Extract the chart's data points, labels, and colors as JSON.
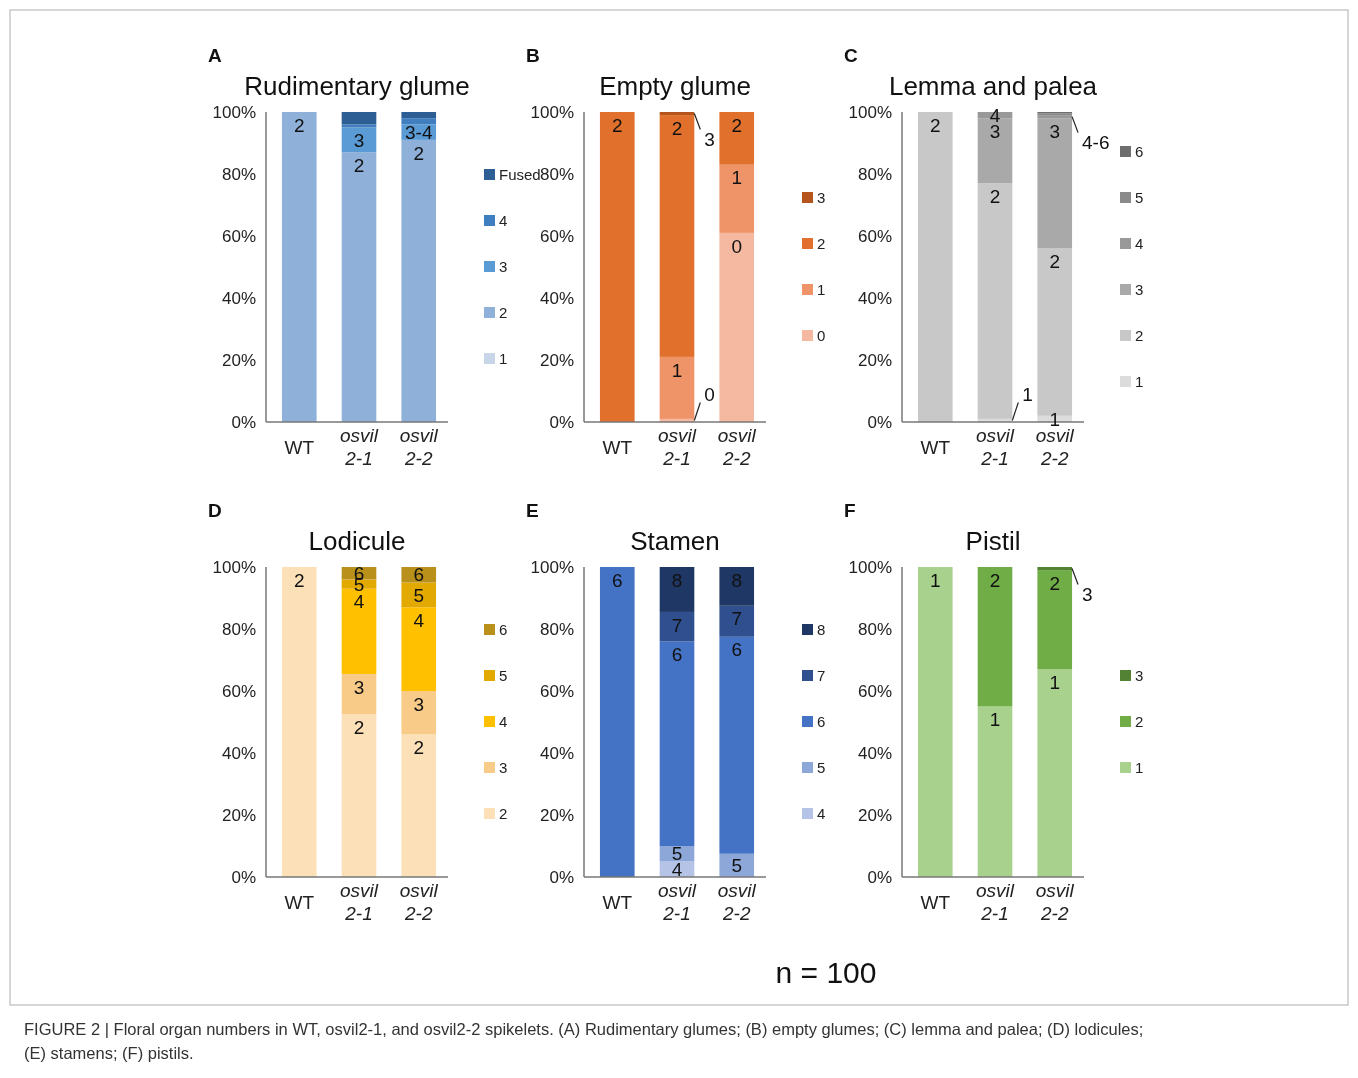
{
  "chart_data": [
    {
      "type": "bar",
      "title": "Rudimentary glume",
      "stacked": true,
      "legend": "right",
      "categories": [
        "WT",
        "osvil 2-1",
        "osvil 2-2"
      ],
      "ylim": [
        0,
        100
      ],
      "yticks": [
        {
          "value": 0,
          "label": "0%"
        },
        {
          "value": 20,
          "label": "20%"
        },
        {
          "value": 40,
          "label": "40%"
        },
        {
          "value": 60,
          "label": "60%"
        },
        {
          "value": 80,
          "label": "80%"
        },
        {
          "value": 100,
          "label": "100%"
        }
      ],
      "series": [
        {
          "name": "1",
          "color": "#c9d6ea",
          "values": [
            0,
            0,
            0
          ]
        },
        {
          "name": "2",
          "color": "#8fb0d9",
          "values": [
            100,
            87,
            91
          ]
        },
        {
          "name": "3",
          "color": "#5b9bd5",
          "values": [
            0,
            8,
            5
          ]
        },
        {
          "name": "4",
          "color": "#3f7fbf",
          "values": [
            0,
            1,
            2
          ]
        },
        {
          "name": "Fused",
          "color": "#2e5f94",
          "values": [
            0,
            4,
            2
          ]
        }
      ],
      "annotations": [
        "A",
        {
          "text": "2",
          "x": "WT",
          "y": 100
        },
        {
          "text": "2",
          "x": "osvil 2-1",
          "y": 87
        },
        {
          "text": "3",
          "x": "osvil 2-1",
          "y": 95
        },
        {
          "text": "2",
          "x": "osvil 2-2",
          "y": 91
        },
        {
          "text": "3-4",
          "x": "osvil 2-2",
          "y": 96
        }
      ]
    },
    {
      "type": "bar",
      "title": "Empty glume",
      "stacked": true,
      "legend": "right",
      "categories": [
        "WT",
        "osvil 2-1",
        "osvil 2-2"
      ],
      "ylim": [
        0,
        100
      ],
      "yticks": [
        {
          "value": 0,
          "label": "0%"
        },
        {
          "value": 20,
          "label": "20%"
        },
        {
          "value": 40,
          "label": "40%"
        },
        {
          "value": 60,
          "label": "60%"
        },
        {
          "value": 80,
          "label": "80%"
        },
        {
          "value": 100,
          "label": "100%"
        }
      ],
      "series": [
        {
          "name": "0",
          "color": "#f4b9a0",
          "values": [
            0,
            1,
            61
          ]
        },
        {
          "name": "1",
          "color": "#ef9468",
          "values": [
            0,
            20,
            22
          ]
        },
        {
          "name": "2",
          "color": "#e0702b",
          "values": [
            100,
            78,
            17
          ]
        },
        {
          "name": "3",
          "color": "#b5541c",
          "values": [
            0,
            1,
            0
          ]
        }
      ],
      "annotations": [
        "B",
        {
          "text": "2",
          "x": "WT",
          "y": 100
        },
        {
          "text": "2",
          "x": "osvil 2-1",
          "y": 99
        },
        {
          "text": "1",
          "x": "osvil 2-1",
          "y": 21
        },
        {
          "text": "0",
          "x": "osvil 2-1",
          "y": 1
        },
        {
          "text": "3",
          "x": "osvil 2-1",
          "y": 100
        },
        {
          "text": "2",
          "x": "osvil 2-2",
          "y": 100
        },
        {
          "text": "1",
          "x": "osvil 2-2",
          "y": 83
        },
        {
          "text": "0",
          "x": "osvil 2-2",
          "y": 61
        }
      ]
    },
    {
      "type": "bar",
      "title": "Lemma and palea",
      "stacked": true,
      "legend": "right",
      "categories": [
        "WT",
        "osvil 2-1",
        "osvil 2-2"
      ],
      "ylim": [
        0,
        100
      ],
      "yticks": [
        {
          "value": 0,
          "label": "0%"
        },
        {
          "value": 20,
          "label": "20%"
        },
        {
          "value": 40,
          "label": "40%"
        },
        {
          "value": 60,
          "label": "60%"
        },
        {
          "value": 80,
          "label": "80%"
        },
        {
          "value": 100,
          "label": "100%"
        }
      ],
      "series": [
        {
          "name": "1",
          "color": "#dcdcdc",
          "values": [
            0,
            1,
            2
          ]
        },
        {
          "name": "2",
          "color": "#c8c8c8",
          "values": [
            100,
            76,
            54
          ]
        },
        {
          "name": "3",
          "color": "#a9a9a9",
          "values": [
            0,
            21,
            42
          ]
        },
        {
          "name": "4",
          "color": "#999999",
          "values": [
            0,
            2,
            1
          ]
        },
        {
          "name": "5",
          "color": "#8a8a8a",
          "values": [
            0,
            0,
            0.5
          ]
        },
        {
          "name": "6",
          "color": "#6e6e6e",
          "values": [
            0,
            0,
            0.5
          ]
        }
      ],
      "annotations": [
        "C",
        {
          "text": "2",
          "x": "WT",
          "y": 100
        },
        {
          "text": "2",
          "x": "osvil 2-1",
          "y": 77
        },
        {
          "text": "3",
          "x": "osvil 2-1",
          "y": 98
        },
        {
          "text": "4",
          "x": "osvil 2-1",
          "y": 100
        },
        {
          "text": "1",
          "x": "osvil 2-1",
          "y": 1
        },
        {
          "text": "2",
          "x": "osvil 2-2",
          "y": 56
        },
        {
          "text": "3",
          "x": "osvil 2-2",
          "y": 98
        },
        {
          "text": "1",
          "x": "osvil 2-2",
          "y": 2
        },
        {
          "text": "4-6",
          "x": "osvil 2-2",
          "y": 99
        }
      ]
    },
    {
      "type": "bar",
      "title": "Lodicule",
      "stacked": true,
      "legend": "right",
      "categories": [
        "WT",
        "osvil 2-1",
        "osvil 2-2"
      ],
      "ylim": [
        0,
        100
      ],
      "yticks": [
        {
          "value": 0,
          "label": "0%"
        },
        {
          "value": 20,
          "label": "20%"
        },
        {
          "value": 40,
          "label": "40%"
        },
        {
          "value": 60,
          "label": "60%"
        },
        {
          "value": 80,
          "label": "80%"
        },
        {
          "value": 100,
          "label": "100%"
        }
      ],
      "series": [
        {
          "name": "2",
          "color": "#fbe0b8",
          "values": [
            100,
            52.5,
            46
          ]
        },
        {
          "name": "3",
          "color": "#f8cc88",
          "values": [
            0,
            13,
            14
          ]
        },
        {
          "name": "4",
          "color": "#ffc000",
          "values": [
            0,
            27.5,
            27
          ]
        },
        {
          "name": "5",
          "color": "#e2a900",
          "values": [
            0,
            3,
            8
          ]
        },
        {
          "name": "6",
          "color": "#b8901a",
          "values": [
            0,
            4,
            5
          ]
        }
      ],
      "annotations": [
        "D",
        {
          "text": "2",
          "x": "WT",
          "y": 100
        },
        {
          "text": "2",
          "x": "osvil 2-1",
          "y": 52.5
        },
        {
          "text": "3",
          "x": "osvil 2-1",
          "y": 65.5
        },
        {
          "text": "4",
          "x": "osvil 2-1",
          "y": 93
        },
        {
          "text": "5",
          "x": "osvil 2-1",
          "y": 96
        },
        {
          "text": "6",
          "x": "osvil 2-1",
          "y": 100
        },
        {
          "text": "2",
          "x": "osvil 2-2",
          "y": 46
        },
        {
          "text": "3",
          "x": "osvil 2-2",
          "y": 60
        },
        {
          "text": "4",
          "x": "osvil 2-2",
          "y": 87
        },
        {
          "text": "5",
          "x": "osvil 2-2",
          "y": 95
        },
        {
          "text": "6",
          "x": "osvil 2-2",
          "y": 100
        }
      ]
    },
    {
      "type": "bar",
      "title": "Stamen",
      "stacked": true,
      "legend": "right",
      "categories": [
        "WT",
        "osvil 2-1",
        "osvil 2-2"
      ],
      "ylim": [
        0,
        100
      ],
      "yticks": [
        {
          "value": 0,
          "label": "0%"
        },
        {
          "value": 20,
          "label": "20%"
        },
        {
          "value": 40,
          "label": "40%"
        },
        {
          "value": 60,
          "label": "60%"
        },
        {
          "value": 80,
          "label": "80%"
        },
        {
          "value": 100,
          "label": "100%"
        }
      ],
      "series": [
        {
          "name": "4",
          "color": "#b4c3e6",
          "values": [
            0,
            5,
            0
          ]
        },
        {
          "name": "5",
          "color": "#8ea7d9",
          "values": [
            0,
            5,
            7.5
          ]
        },
        {
          "name": "6",
          "color": "#4472c4",
          "values": [
            100,
            66,
            70
          ]
        },
        {
          "name": "7",
          "color": "#2f4f8f",
          "values": [
            0,
            9.5,
            10
          ]
        },
        {
          "name": "8",
          "color": "#1f3764",
          "values": [
            0,
            14.5,
            12.5
          ]
        }
      ],
      "annotations": [
        "E",
        {
          "text": "6",
          "x": "WT",
          "y": 100
        },
        {
          "text": "8",
          "x": "osvil 2-1",
          "y": 100
        },
        {
          "text": "7",
          "x": "osvil 2-1",
          "y": 85.5
        },
        {
          "text": "6",
          "x": "osvil 2-1",
          "y": 76
        },
        {
          "text": "5",
          "x": "osvil 2-1",
          "y": 10
        },
        {
          "text": "4",
          "x": "osvil 2-1",
          "y": 5
        },
        {
          "text": "8",
          "x": "osvil 2-2",
          "y": 100
        },
        {
          "text": "7",
          "x": "osvil 2-2",
          "y": 87.5
        },
        {
          "text": "6",
          "x": "osvil 2-2",
          "y": 77.5
        },
        {
          "text": "5",
          "x": "osvil 2-2",
          "y": 7.5
        }
      ]
    },
    {
      "type": "bar",
      "title": "Pistil",
      "stacked": true,
      "legend": "right",
      "categories": [
        "WT",
        "osvil 2-1",
        "osvil 2-2"
      ],
      "ylim": [
        0,
        100
      ],
      "yticks": [
        {
          "value": 0,
          "label": "0%"
        },
        {
          "value": 20,
          "label": "20%"
        },
        {
          "value": 40,
          "label": "40%"
        },
        {
          "value": 60,
          "label": "60%"
        },
        {
          "value": 80,
          "label": "80%"
        },
        {
          "value": 100,
          "label": "100%"
        }
      ],
      "series": [
        {
          "name": "1",
          "color": "#a9d18e",
          "values": [
            100,
            55,
            67
          ]
        },
        {
          "name": "2",
          "color": "#70ad47",
          "values": [
            0,
            45,
            32
          ]
        },
        {
          "name": "3",
          "color": "#548235",
          "values": [
            0,
            0,
            1
          ]
        }
      ],
      "annotations": [
        "F",
        {
          "text": "1",
          "x": "WT",
          "y": 100
        },
        {
          "text": "2",
          "x": "osvil 2-1",
          "y": 100
        },
        {
          "text": "1",
          "x": "osvil 2-1",
          "y": 55
        },
        {
          "text": "2",
          "x": "osvil 2-2",
          "y": 99
        },
        {
          "text": "1",
          "x": "osvil 2-2",
          "y": 67
        },
        {
          "text": "3",
          "x": "osvil 2-2",
          "y": 100
        }
      ]
    },
    {
      "type": "other",
      "annotations": [
        "n = 100",
        "FIGURE 2 | Floral organ numbers in WT, osvil2-1, and osvil2-2 spikelets. (A) Rudimentary glumes; (B) empty glumes; (C) lemma and palea; (D) lodicules; (E) stamens; (F) pistils."
      ]
    }
  ]
}
